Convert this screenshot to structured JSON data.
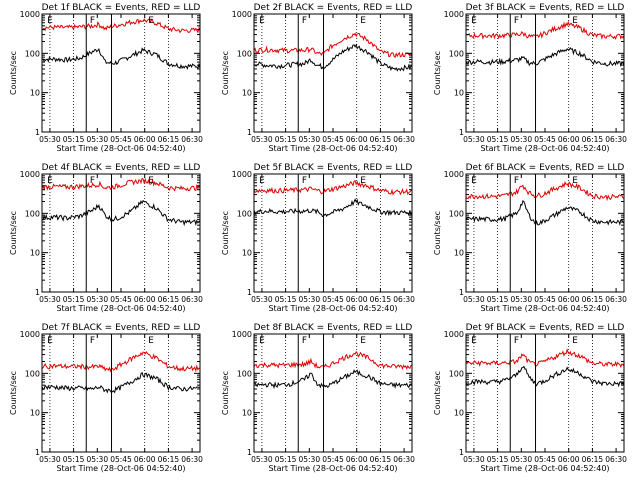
{
  "figure": {
    "ylabel": "Counts/sec",
    "xlabel": "Start Time (28-Oct-06 04:52:40)",
    "x_tick_labels": [
      "05:30",
      "05:15",
      "05:30",
      "05:45",
      "06:00",
      "06:15",
      "06:30"
    ],
    "y_tick_labels": [
      "1",
      "10",
      "100",
      "1000"
    ],
    "colors": {
      "events": "#000000",
      "lld": "#e00000",
      "axes": "#000000"
    },
    "region_labels": [
      "E",
      "F",
      "E"
    ]
  },
  "chart_data": [
    {
      "type": "line",
      "title": "Det 1f BLACK = Events, RED = LLD",
      "ylim": [
        1,
        1000
      ],
      "log_y": true,
      "x": [
        0,
        0.08,
        0.16,
        0.24,
        0.32,
        0.36,
        0.4,
        0.44,
        0.48,
        0.56,
        0.64,
        0.72,
        0.8,
        0.88,
        1.0
      ],
      "series": [
        {
          "name": "Events",
          "values": [
            70,
            72,
            68,
            75,
            110,
            130,
            60,
            55,
            60,
            85,
            120,
            95,
            55,
            48,
            47
          ]
        },
        {
          "name": "LLD",
          "values": [
            450,
            460,
            450,
            470,
            500,
            550,
            420,
            480,
            520,
            620,
            700,
            600,
            420,
            380,
            390
          ]
        }
      ]
    },
    {
      "type": "line",
      "title": "Det 2f BLACK = Events, RED = LLD",
      "ylim": [
        1,
        1000
      ],
      "log_y": true,
      "x": [
        0,
        0.08,
        0.16,
        0.24,
        0.32,
        0.36,
        0.4,
        0.44,
        0.48,
        0.56,
        0.64,
        0.72,
        0.8,
        0.88,
        1.0
      ],
      "series": [
        {
          "name": "Events",
          "values": [
            55,
            50,
            48,
            52,
            55,
            70,
            50,
            45,
            60,
            110,
            160,
            110,
            55,
            40,
            45
          ]
        },
        {
          "name": "LLD",
          "values": [
            120,
            125,
            120,
            118,
            120,
            130,
            100,
            95,
            140,
            230,
            320,
            220,
            110,
            90,
            95
          ]
        }
      ]
    },
    {
      "type": "line",
      "title": "Det 3f BLACK = Events, RED = LLD",
      "ylim": [
        1,
        1000
      ],
      "log_y": true,
      "x": [
        0,
        0.08,
        0.16,
        0.24,
        0.32,
        0.36,
        0.4,
        0.44,
        0.48,
        0.56,
        0.64,
        0.72,
        0.8,
        0.88,
        1.0
      ],
      "series": [
        {
          "name": "Events",
          "values": [
            60,
            62,
            60,
            62,
            68,
            75,
            58,
            55,
            65,
            95,
            130,
            100,
            62,
            55,
            55
          ]
        },
        {
          "name": "LLD",
          "values": [
            280,
            285,
            280,
            285,
            300,
            320,
            270,
            260,
            300,
            420,
            560,
            440,
            290,
            270,
            275
          ]
        }
      ]
    },
    {
      "type": "line",
      "title": "Det 4f BLACK = Events, RED = LLD",
      "ylim": [
        1,
        1000
      ],
      "log_y": true,
      "x": [
        0,
        0.08,
        0.16,
        0.24,
        0.32,
        0.36,
        0.4,
        0.44,
        0.48,
        0.56,
        0.64,
        0.72,
        0.8,
        0.88,
        1.0
      ],
      "series": [
        {
          "name": "Events",
          "values": [
            78,
            80,
            76,
            85,
            120,
            160,
            90,
            70,
            75,
            110,
            200,
            140,
            70,
            60,
            60
          ]
        },
        {
          "name": "LLD",
          "values": [
            470,
            480,
            470,
            490,
            520,
            560,
            450,
            460,
            500,
            620,
            680,
            600,
            450,
            430,
            450
          ]
        }
      ]
    },
    {
      "type": "line",
      "title": "Det 5f BLACK = Events, RED = LLD",
      "ylim": [
        1,
        1000
      ],
      "log_y": true,
      "x": [
        0,
        0.08,
        0.16,
        0.24,
        0.32,
        0.36,
        0.4,
        0.44,
        0.48,
        0.56,
        0.64,
        0.72,
        0.8,
        0.88,
        1.0
      ],
      "series": [
        {
          "name": "Events",
          "values": [
            110,
            115,
            110,
            112,
            115,
            118,
            110,
            90,
            100,
            130,
            200,
            150,
            110,
            105,
            105
          ]
        },
        {
          "name": "LLD",
          "values": [
            380,
            385,
            380,
            390,
            400,
            420,
            380,
            360,
            400,
            480,
            600,
            500,
            380,
            350,
            360
          ]
        }
      ]
    },
    {
      "type": "line",
      "title": "Det 6f BLACK = Events, RED = LLD",
      "ylim": [
        1,
        1000
      ],
      "log_y": true,
      "x": [
        0,
        0.08,
        0.16,
        0.24,
        0.32,
        0.36,
        0.4,
        0.44,
        0.48,
        0.56,
        0.64,
        0.72,
        0.8,
        0.88,
        1.0
      ],
      "series": [
        {
          "name": "Events",
          "values": [
            70,
            72,
            70,
            72,
            100,
            200,
            90,
            55,
            60,
            90,
            140,
            110,
            65,
            60,
            60
          ]
        },
        {
          "name": "LLD",
          "values": [
            270,
            275,
            270,
            280,
            350,
            520,
            330,
            280,
            300,
            420,
            580,
            450,
            280,
            260,
            265
          ]
        }
      ]
    },
    {
      "type": "line",
      "title": "Det 7f BLACK = Events, RED = LLD",
      "ylim": [
        1,
        1000
      ],
      "log_y": true,
      "x": [
        0,
        0.08,
        0.16,
        0.24,
        0.32,
        0.36,
        0.4,
        0.44,
        0.48,
        0.56,
        0.64,
        0.72,
        0.8,
        0.88,
        1.0
      ],
      "series": [
        {
          "name": "Events",
          "values": [
            45,
            45,
            42,
            42,
            40,
            45,
            38,
            36,
            40,
            60,
            95,
            75,
            45,
            40,
            42
          ]
        },
        {
          "name": "LLD",
          "values": [
            150,
            155,
            150,
            150,
            145,
            150,
            130,
            120,
            150,
            230,
            340,
            250,
            150,
            130,
            135
          ]
        }
      ]
    },
    {
      "type": "line",
      "title": "Det 8f BLACK = Events, RED = LLD",
      "ylim": [
        1,
        1000
      ],
      "log_y": true,
      "x": [
        0,
        0.08,
        0.16,
        0.24,
        0.32,
        0.36,
        0.4,
        0.44,
        0.48,
        0.56,
        0.64,
        0.72,
        0.8,
        0.88,
        1.0
      ],
      "series": [
        {
          "name": "Events",
          "values": [
            50,
            52,
            50,
            55,
            70,
            100,
            55,
            45,
            50,
            75,
            110,
            85,
            55,
            50,
            50
          ]
        },
        {
          "name": "LLD",
          "values": [
            160,
            165,
            160,
            165,
            170,
            200,
            150,
            140,
            165,
            240,
            330,
            250,
            160,
            150,
            150
          ]
        }
      ]
    },
    {
      "type": "line",
      "title": "Det 9f BLACK = Events, RED = LLD",
      "ylim": [
        1,
        1000
      ],
      "log_y": true,
      "x": [
        0,
        0.08,
        0.16,
        0.24,
        0.32,
        0.36,
        0.4,
        0.44,
        0.48,
        0.56,
        0.64,
        0.72,
        0.8,
        0.88,
        1.0
      ],
      "series": [
        {
          "name": "Events",
          "values": [
            60,
            62,
            60,
            65,
            90,
            160,
            80,
            55,
            60,
            90,
            130,
            100,
            62,
            55,
            55
          ]
        },
        {
          "name": "LLD",
          "values": [
            180,
            185,
            180,
            185,
            200,
            300,
            190,
            170,
            185,
            260,
            360,
            280,
            180,
            170,
            170
          ]
        }
      ]
    }
  ]
}
